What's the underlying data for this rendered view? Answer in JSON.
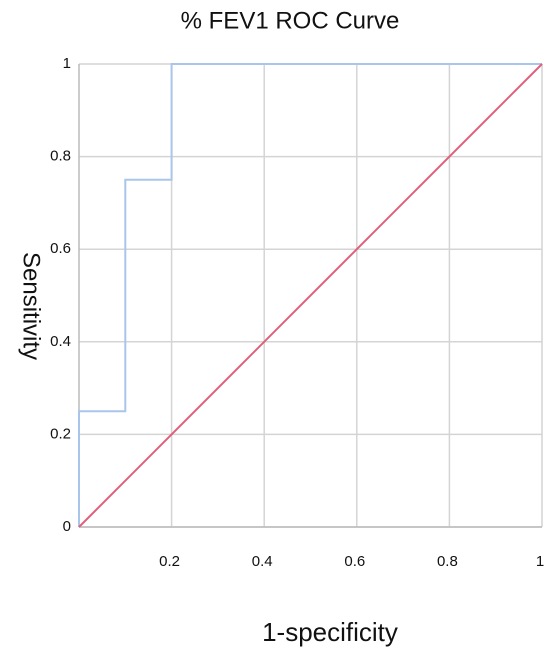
{
  "chart_data": {
    "type": "line",
    "title": "% FEV1 ROC Curve",
    "x_label": "1-specificity",
    "y_label": "Sensitivity",
    "series": [
      {
        "color": "#a9c5ec",
        "x": [
          0,
          0,
          0.1,
          0.1,
          0.2,
          0.2,
          1
        ],
        "values": [
          0,
          0.25,
          0.25,
          0.75,
          0.75,
          1,
          1
        ]
      },
      {
        "color": "#e0607c",
        "x": [
          0,
          1
        ],
        "values": [
          0,
          1
        ]
      }
    ],
    "xlim": [
      0,
      1
    ],
    "ylim": [
      0,
      1
    ],
    "xticks": [
      0.2,
      0.4,
      0.6,
      0.8,
      1
    ],
    "yticks": [
      0,
      0.2,
      0.4,
      0.6,
      0.8,
      1
    ],
    "grid": true
  }
}
